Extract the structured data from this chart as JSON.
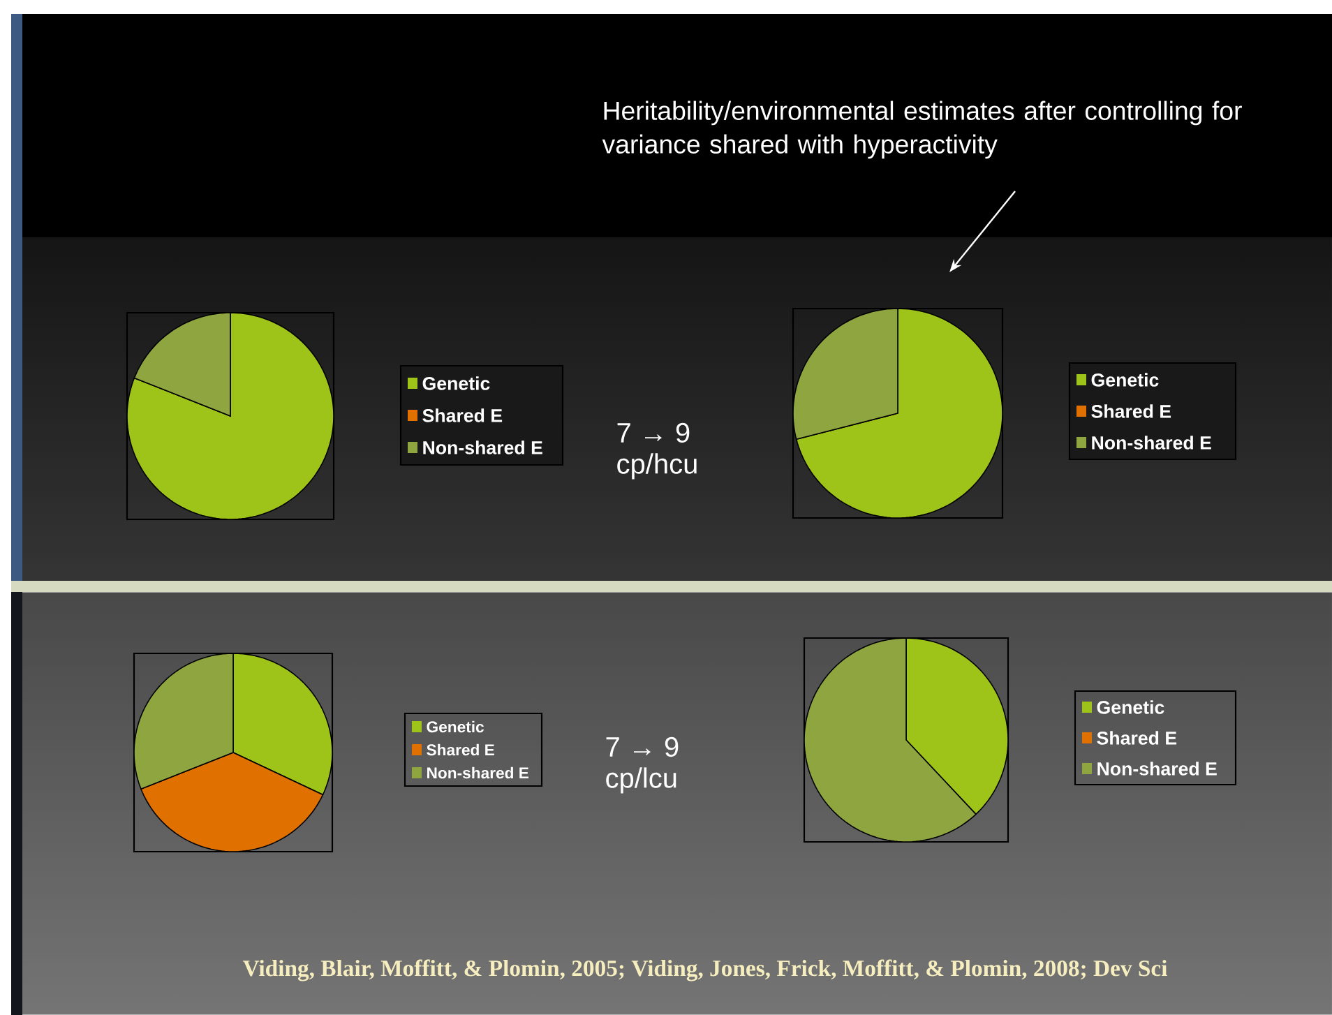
{
  "chart_data": [
    {
      "type": "pie",
      "categories": [
        "Genetic",
        "Shared E",
        "Non-shared E"
      ],
      "values": [
        81,
        0,
        19
      ],
      "colors": [
        "#9fc419",
        "#e07000",
        "#8fa640"
      ],
      "legend": "right",
      "annotations": [
        "7 → 9",
        "cp/hcu"
      ]
    },
    {
      "type": "pie",
      "categories": [
        "Genetic",
        "Shared E",
        "Non-shared E"
      ],
      "values": [
        71,
        0,
        29
      ],
      "colors": [
        "#9fc419",
        "#e07000",
        "#8fa640"
      ],
      "legend": "right",
      "annotations": [
        "Heritability/environmental estimates after controlling for variance shared with hyperactivity"
      ]
    },
    {
      "type": "pie",
      "categories": [
        "Genetic",
        "Shared E",
        "Non-shared E"
      ],
      "values": [
        32,
        37,
        31
      ],
      "colors": [
        "#9fc419",
        "#e07000",
        "#8fa640"
      ],
      "legend": "right",
      "annotations": [
        "7 → 9",
        "cp/lcu"
      ]
    },
    {
      "type": "pie",
      "categories": [
        "Genetic",
        "Shared E",
        "Non-shared E"
      ],
      "values": [
        38,
        0,
        62
      ],
      "colors": [
        "#9fc419",
        "#e07000",
        "#8fa640"
      ],
      "legend": "right",
      "annotations": [
        "Viding, Blair, Moffitt, & Plomin, 2005; Viding, Jones, Frick, Moffitt, & Plomin, 2008; Dev Sci"
      ]
    }
  ]
}
